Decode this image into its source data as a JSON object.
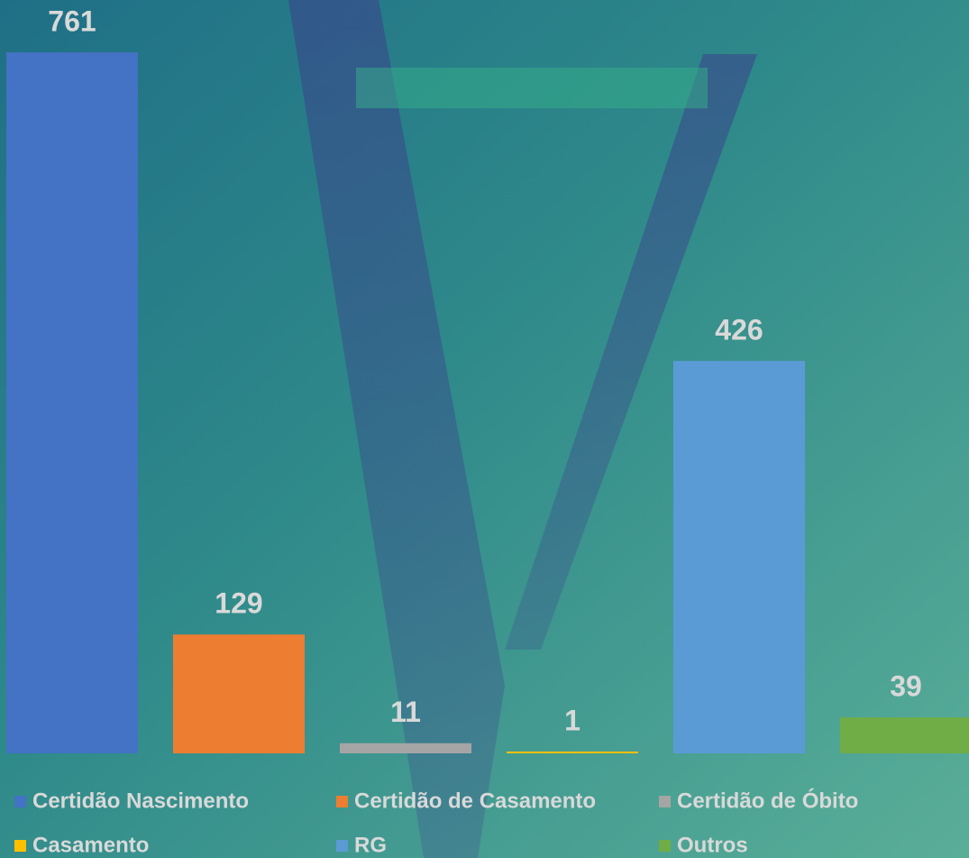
{
  "chart_data": {
    "type": "bar",
    "series": [
      {
        "name": "Certidão Nascimento",
        "color": "#4472c4",
        "values": [
          761
        ]
      },
      {
        "name": "Certidão de Casamento",
        "color": "#ed7d31",
        "values": [
          129
        ]
      },
      {
        "name": "Certidão de Óbito",
        "color": "#a5a5a5",
        "values": [
          11
        ]
      },
      {
        "name": "Casamento",
        "color": "#ffc000",
        "values": [
          1
        ]
      },
      {
        "name": "RG",
        "color": "#5b9bd5",
        "values": [
          426
        ]
      },
      {
        "name": "Outros",
        "color": "#70ad47",
        "values": [
          39
        ]
      }
    ],
    "legend": "bottom"
  }
}
